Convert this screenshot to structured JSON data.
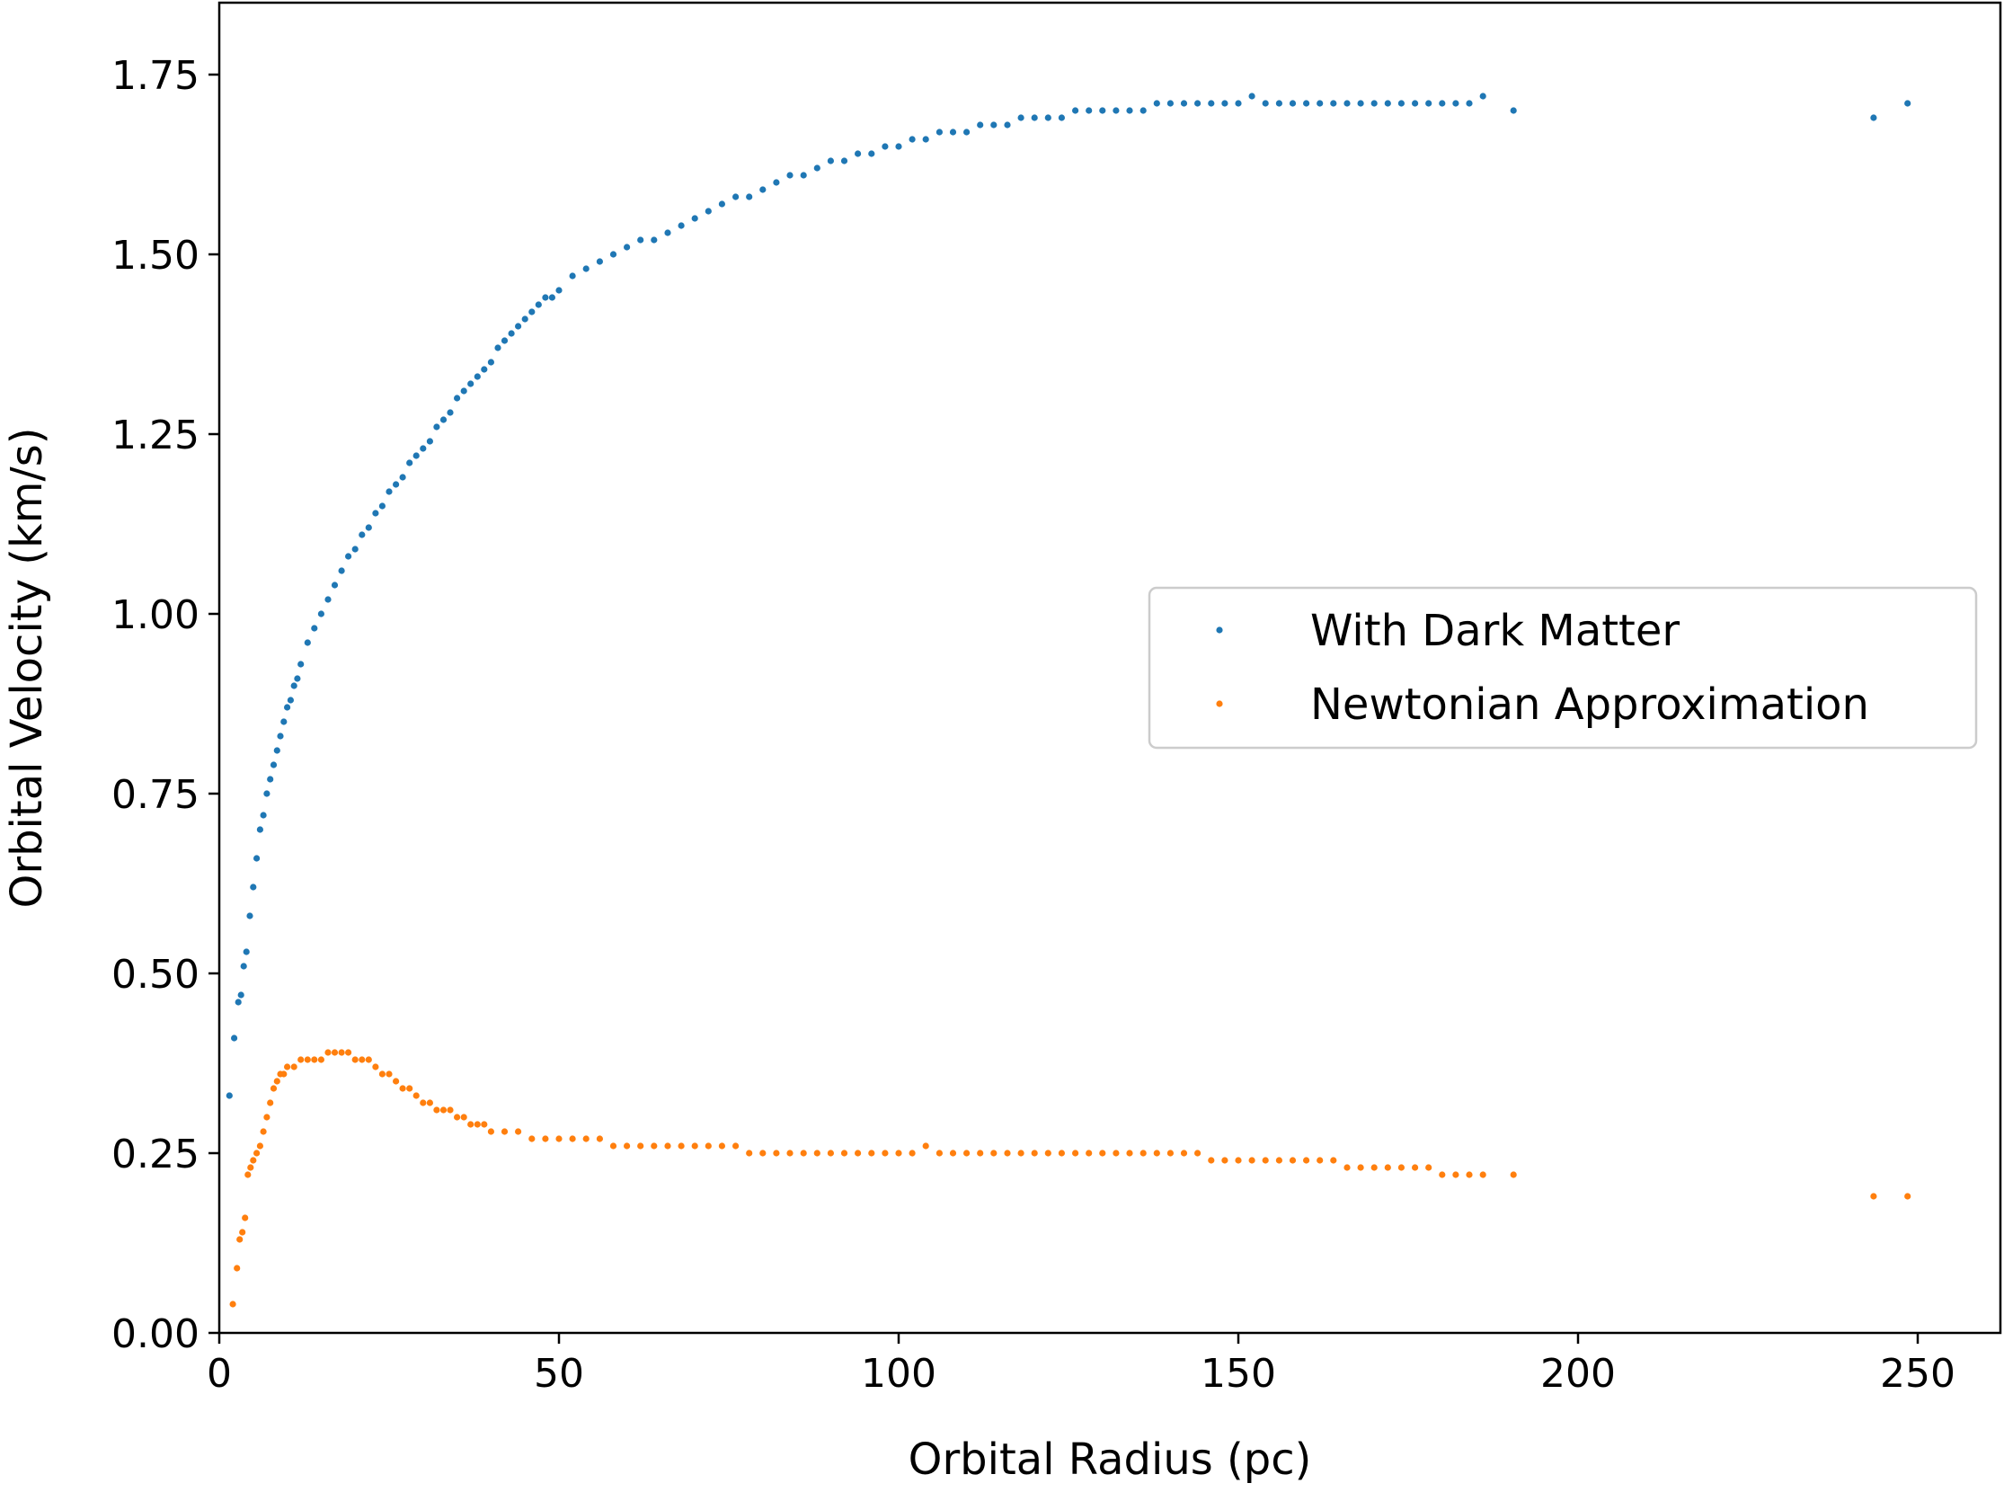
{
  "chart_data": {
    "type": "scatter",
    "title": "",
    "xlabel": "Orbital Radius (pc)",
    "ylabel": "Orbital Velocity (km/s)",
    "xlim": [
      0,
      262
    ],
    "ylim": [
      0,
      1.75
    ],
    "x_ticks": [
      "0",
      "50",
      "100",
      "150",
      "200",
      "250"
    ],
    "y_ticks": [
      "0.00",
      "0.25",
      "0.50",
      "0.75",
      "1.00",
      "1.25",
      "1.50",
      "1.75"
    ],
    "grid": false,
    "legend": {
      "position": "center-right"
    },
    "series": [
      {
        "name": "With Dark Matter",
        "color": "#1f77b4",
        "points": [
          [
            1.5,
            0.33
          ],
          [
            2.2,
            0.41
          ],
          [
            2.8,
            0.46
          ],
          [
            3.2,
            0.47
          ],
          [
            3.6,
            0.51
          ],
          [
            4.0,
            0.53
          ],
          [
            4.5,
            0.58
          ],
          [
            5.0,
            0.62
          ],
          [
            5.5,
            0.66
          ],
          [
            6.0,
            0.7
          ],
          [
            6.5,
            0.72
          ],
          [
            7.0,
            0.75
          ],
          [
            7.5,
            0.77
          ],
          [
            8.0,
            0.79
          ],
          [
            8.5,
            0.81
          ],
          [
            9.0,
            0.83
          ],
          [
            9.5,
            0.85
          ],
          [
            10.0,
            0.87
          ],
          [
            10.5,
            0.88
          ],
          [
            11.0,
            0.9
          ],
          [
            11.5,
            0.91
          ],
          [
            12.0,
            0.93
          ],
          [
            13.0,
            0.96
          ],
          [
            14.0,
            0.98
          ],
          [
            15.0,
            1.0
          ],
          [
            16.0,
            1.02
          ],
          [
            17.0,
            1.04
          ],
          [
            18.0,
            1.06
          ],
          [
            19.0,
            1.08
          ],
          [
            20.0,
            1.09
          ],
          [
            21.0,
            1.11
          ],
          [
            22.0,
            1.12
          ],
          [
            23.0,
            1.14
          ],
          [
            24.0,
            1.15
          ],
          [
            25.0,
            1.17
          ],
          [
            26.0,
            1.18
          ],
          [
            27.0,
            1.19
          ],
          [
            28.0,
            1.21
          ],
          [
            29.0,
            1.22
          ],
          [
            30.0,
            1.23
          ],
          [
            31.0,
            1.24
          ],
          [
            32.0,
            1.26
          ],
          [
            33.0,
            1.27
          ],
          [
            34.0,
            1.28
          ],
          [
            35.0,
            1.3
          ],
          [
            36.0,
            1.31
          ],
          [
            37.0,
            1.32
          ],
          [
            38.0,
            1.33
          ],
          [
            39.0,
            1.34
          ],
          [
            40.0,
            1.35
          ],
          [
            41.0,
            1.37
          ],
          [
            42.0,
            1.38
          ],
          [
            43.0,
            1.39
          ],
          [
            44.0,
            1.4
          ],
          [
            45.0,
            1.41
          ],
          [
            46.0,
            1.42
          ],
          [
            47.0,
            1.43
          ],
          [
            48.0,
            1.44
          ],
          [
            49.0,
            1.44
          ],
          [
            50.0,
            1.45
          ],
          [
            52.0,
            1.47
          ],
          [
            54.0,
            1.48
          ],
          [
            56.0,
            1.49
          ],
          [
            58.0,
            1.5
          ],
          [
            60.0,
            1.51
          ],
          [
            62.0,
            1.52
          ],
          [
            64.0,
            1.52
          ],
          [
            66.0,
            1.53
          ],
          [
            68.0,
            1.54
          ],
          [
            70.0,
            1.55
          ],
          [
            72.0,
            1.56
          ],
          [
            74.0,
            1.57
          ],
          [
            76.0,
            1.58
          ],
          [
            78.0,
            1.58
          ],
          [
            80.0,
            1.59
          ],
          [
            82.0,
            1.6
          ],
          [
            84.0,
            1.61
          ],
          [
            86.0,
            1.61
          ],
          [
            88.0,
            1.62
          ],
          [
            90.0,
            1.63
          ],
          [
            92.0,
            1.63
          ],
          [
            94.0,
            1.64
          ],
          [
            96.0,
            1.64
          ],
          [
            98.0,
            1.65
          ],
          [
            100.0,
            1.65
          ],
          [
            102.0,
            1.66
          ],
          [
            104.0,
            1.66
          ],
          [
            106.0,
            1.67
          ],
          [
            108.0,
            1.67
          ],
          [
            110.0,
            1.67
          ],
          [
            112.0,
            1.68
          ],
          [
            114.0,
            1.68
          ],
          [
            116.0,
            1.68
          ],
          [
            118.0,
            1.69
          ],
          [
            120.0,
            1.69
          ],
          [
            122.0,
            1.69
          ],
          [
            124.0,
            1.69
          ],
          [
            126.0,
            1.7
          ],
          [
            128.0,
            1.7
          ],
          [
            130.0,
            1.7
          ],
          [
            132.0,
            1.7
          ],
          [
            134.0,
            1.7
          ],
          [
            136.0,
            1.7
          ],
          [
            138.0,
            1.71
          ],
          [
            140.0,
            1.71
          ],
          [
            142.0,
            1.71
          ],
          [
            144.0,
            1.71
          ],
          [
            146.0,
            1.71
          ],
          [
            148.0,
            1.71
          ],
          [
            150.0,
            1.71
          ],
          [
            152.0,
            1.72
          ],
          [
            154.0,
            1.71
          ],
          [
            156.0,
            1.71
          ],
          [
            158.0,
            1.71
          ],
          [
            160.0,
            1.71
          ],
          [
            162.0,
            1.71
          ],
          [
            164.0,
            1.71
          ],
          [
            166.0,
            1.71
          ],
          [
            168.0,
            1.71
          ],
          [
            170.0,
            1.71
          ],
          [
            172.0,
            1.71
          ],
          [
            174.0,
            1.71
          ],
          [
            176.0,
            1.71
          ],
          [
            178.0,
            1.71
          ],
          [
            180.0,
            1.71
          ],
          [
            182.0,
            1.71
          ],
          [
            184.0,
            1.71
          ],
          [
            186.0,
            1.72
          ],
          [
            190.5,
            1.7
          ],
          [
            243.5,
            1.69
          ],
          [
            248.5,
            1.71
          ]
        ]
      },
      {
        "name": "Newtonian Approximation",
        "color": "#ff7f0e",
        "points": [
          [
            2.0,
            0.04
          ],
          [
            2.6,
            0.09
          ],
          [
            3.0,
            0.13
          ],
          [
            3.4,
            0.14
          ],
          [
            3.8,
            0.16
          ],
          [
            4.2,
            0.22
          ],
          [
            4.6,
            0.23
          ],
          [
            5.0,
            0.24
          ],
          [
            5.5,
            0.25
          ],
          [
            6.0,
            0.26
          ],
          [
            6.5,
            0.28
          ],
          [
            7.0,
            0.3
          ],
          [
            7.5,
            0.32
          ],
          [
            8.0,
            0.34
          ],
          [
            8.5,
            0.35
          ],
          [
            9.0,
            0.36
          ],
          [
            9.5,
            0.36
          ],
          [
            10.0,
            0.37
          ],
          [
            11.0,
            0.37
          ],
          [
            12.0,
            0.38
          ],
          [
            13.0,
            0.38
          ],
          [
            14.0,
            0.38
          ],
          [
            15.0,
            0.38
          ],
          [
            16.0,
            0.39
          ],
          [
            17.0,
            0.39
          ],
          [
            18.0,
            0.39
          ],
          [
            19.0,
            0.39
          ],
          [
            20.0,
            0.38
          ],
          [
            21.0,
            0.38
          ],
          [
            22.0,
            0.38
          ],
          [
            23.0,
            0.37
          ],
          [
            24.0,
            0.36
          ],
          [
            25.0,
            0.36
          ],
          [
            26.0,
            0.35
          ],
          [
            27.0,
            0.34
          ],
          [
            28.0,
            0.34
          ],
          [
            29.0,
            0.33
          ],
          [
            30.0,
            0.32
          ],
          [
            31.0,
            0.32
          ],
          [
            32.0,
            0.31
          ],
          [
            33.0,
            0.31
          ],
          [
            34.0,
            0.31
          ],
          [
            35.0,
            0.3
          ],
          [
            36.0,
            0.3
          ],
          [
            37.0,
            0.29
          ],
          [
            38.0,
            0.29
          ],
          [
            39.0,
            0.29
          ],
          [
            40.0,
            0.28
          ],
          [
            42.0,
            0.28
          ],
          [
            44.0,
            0.28
          ],
          [
            46.0,
            0.27
          ],
          [
            48.0,
            0.27
          ],
          [
            50.0,
            0.27
          ],
          [
            52.0,
            0.27
          ],
          [
            54.0,
            0.27
          ],
          [
            56.0,
            0.27
          ],
          [
            58.0,
            0.26
          ],
          [
            60.0,
            0.26
          ],
          [
            62.0,
            0.26
          ],
          [
            64.0,
            0.26
          ],
          [
            66.0,
            0.26
          ],
          [
            68.0,
            0.26
          ],
          [
            70.0,
            0.26
          ],
          [
            72.0,
            0.26
          ],
          [
            74.0,
            0.26
          ],
          [
            76.0,
            0.26
          ],
          [
            78.0,
            0.25
          ],
          [
            80.0,
            0.25
          ],
          [
            82.0,
            0.25
          ],
          [
            84.0,
            0.25
          ],
          [
            86.0,
            0.25
          ],
          [
            88.0,
            0.25
          ],
          [
            90.0,
            0.25
          ],
          [
            92.0,
            0.25
          ],
          [
            94.0,
            0.25
          ],
          [
            96.0,
            0.25
          ],
          [
            98.0,
            0.25
          ],
          [
            100.0,
            0.25
          ],
          [
            102.0,
            0.25
          ],
          [
            104.0,
            0.26
          ],
          [
            106.0,
            0.25
          ],
          [
            108.0,
            0.25
          ],
          [
            110.0,
            0.25
          ],
          [
            112.0,
            0.25
          ],
          [
            114.0,
            0.25
          ],
          [
            116.0,
            0.25
          ],
          [
            118.0,
            0.25
          ],
          [
            120.0,
            0.25
          ],
          [
            122.0,
            0.25
          ],
          [
            124.0,
            0.25
          ],
          [
            126.0,
            0.25
          ],
          [
            128.0,
            0.25
          ],
          [
            130.0,
            0.25
          ],
          [
            132.0,
            0.25
          ],
          [
            134.0,
            0.25
          ],
          [
            136.0,
            0.25
          ],
          [
            138.0,
            0.25
          ],
          [
            140.0,
            0.25
          ],
          [
            142.0,
            0.25
          ],
          [
            144.0,
            0.25
          ],
          [
            146.0,
            0.24
          ],
          [
            148.0,
            0.24
          ],
          [
            150.0,
            0.24
          ],
          [
            152.0,
            0.24
          ],
          [
            154.0,
            0.24
          ],
          [
            156.0,
            0.24
          ],
          [
            158.0,
            0.24
          ],
          [
            160.0,
            0.24
          ],
          [
            162.0,
            0.24
          ],
          [
            164.0,
            0.24
          ],
          [
            166.0,
            0.23
          ],
          [
            168.0,
            0.23
          ],
          [
            170.0,
            0.23
          ],
          [
            172.0,
            0.23
          ],
          [
            174.0,
            0.23
          ],
          [
            176.0,
            0.23
          ],
          [
            178.0,
            0.23
          ],
          [
            180.0,
            0.22
          ],
          [
            182.0,
            0.22
          ],
          [
            184.0,
            0.22
          ],
          [
            186.0,
            0.22
          ],
          [
            190.5,
            0.22
          ],
          [
            243.5,
            0.19
          ],
          [
            248.5,
            0.19
          ]
        ]
      }
    ]
  }
}
